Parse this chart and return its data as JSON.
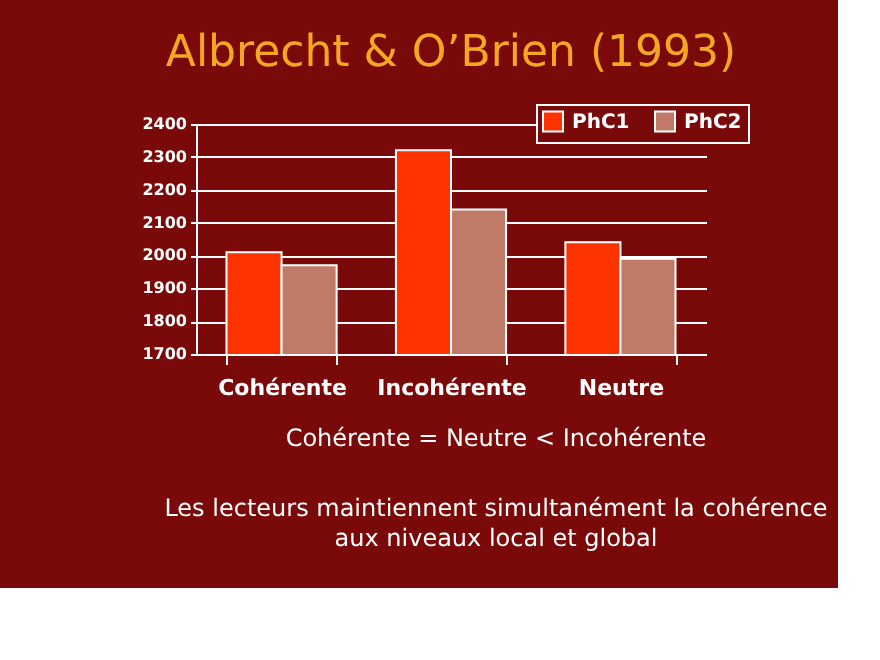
{
  "chart_data": {
    "type": "bar",
    "title": "Albrecht & O’Brien (1993)",
    "categories": [
      "Cohérente",
      "Incohérente",
      "Neutre"
    ],
    "series": [
      {
        "name": "PhC1",
        "color": "#ff3300",
        "values": [
          2010,
          2320,
          2040
        ]
      },
      {
        "name": "PhC2",
        "color": "#c07a68",
        "values": [
          1970,
          2140,
          1990
        ]
      }
    ],
    "ylim": [
      1700,
      2400
    ],
    "yticks": [
      1700,
      1800,
      1900,
      2000,
      2100,
      2200,
      2300,
      2400
    ],
    "grid": "y",
    "legend": "top right",
    "annotations": [
      "Cohérente = Neutre < Incohérente",
      "Les lecteurs maintiennent simultanément la cohérence",
      "aux niveaux local et global"
    ]
  }
}
